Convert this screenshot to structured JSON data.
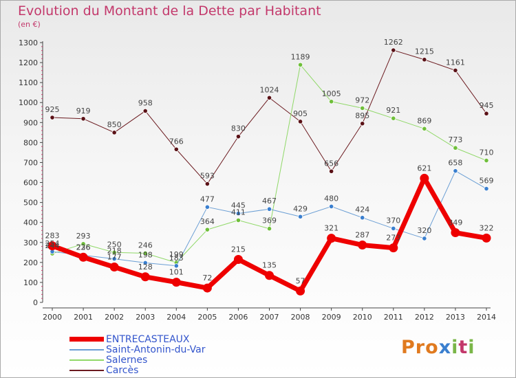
{
  "title": "Evolution du Montant de la Dette par Habitant",
  "subtitle": "(en €)",
  "logo": {
    "text": "Proxiti",
    "colors": [
      "#e07a1f",
      "#e07a1f",
      "#e07a1f",
      "#3a7fcf",
      "#7ab648",
      "#c3386b",
      "#7ab648"
    ]
  },
  "chart_data": {
    "type": "line",
    "x": [
      2000,
      2001,
      2002,
      2003,
      2004,
      2005,
      2006,
      2007,
      2008,
      2009,
      2010,
      2011,
      2012,
      2013,
      2014
    ],
    "ylim": [
      0,
      1300
    ],
    "yticks": [
      0,
      100,
      200,
      300,
      400,
      500,
      600,
      700,
      800,
      900,
      1000,
      1100,
      1200,
      1300
    ],
    "grid": false,
    "legend_position": "bottom-left",
    "series": [
      {
        "name": "Carcès",
        "color": "#6b1a1f",
        "marker_color": "#5a1116",
        "width": 1,
        "values": [
          925,
          919,
          850,
          958,
          766,
          593,
          830,
          1024,
          905,
          656,
          895,
          1262,
          1215,
          1161,
          945
        ],
        "labels": [
          "925",
          "919",
          "850",
          "958",
          "766",
          "593",
          "830",
          "1024",
          "905",
          "656",
          "895",
          "1262",
          "1215",
          "1161",
          "945"
        ]
      },
      {
        "name": "Salernes",
        "color": "#8fd867",
        "marker_color": "#6fbf3a",
        "width": 1,
        "values": [
          244,
          293,
          250,
          246,
          199,
          364,
          411,
          369,
          1189,
          1005,
          972,
          921,
          869,
          773,
          710
        ],
        "labels": [
          "244",
          "293",
          "250",
          "246",
          "199",
          "364",
          "411",
          "369",
          "1189",
          "1005",
          "972",
          "921",
          "869",
          "773",
          "710"
        ]
      },
      {
        "name": "Saint-Antonin-du-Var",
        "color": "#6a9ed4",
        "marker_color": "#3a7fcf",
        "width": 1,
        "values": [
          254,
          236,
          218,
          198,
          183,
          477,
          445,
          467,
          429,
          480,
          424,
          370,
          320,
          658,
          569
        ],
        "labels": [
          "254",
          "236",
          "218",
          "198",
          "183",
          "477",
          "445",
          "467",
          "429",
          "480",
          "424",
          "370",
          "320",
          "658",
          "569"
        ]
      },
      {
        "name": "ENTRECASTEAUX",
        "color": "#ee0000",
        "marker_color": "#ee0000",
        "width": 7,
        "values": [
          283,
          226,
          177,
          128,
          101,
          72,
          215,
          135,
          57,
          321,
          287,
          273,
          621,
          349,
          322
        ],
        "labels": [
          "283",
          "226",
          "177",
          "128",
          "101",
          "72",
          "215",
          "135",
          "57",
          "321",
          "287",
          "273",
          "621",
          "349",
          "322"
        ]
      }
    ]
  }
}
